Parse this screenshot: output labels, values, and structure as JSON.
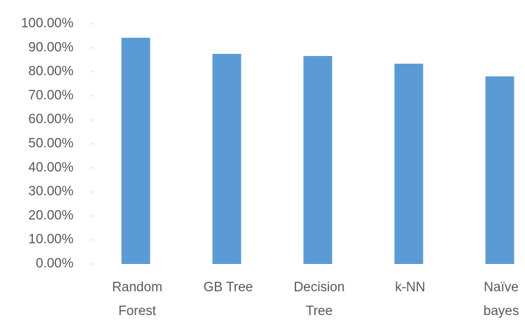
{
  "chart_data": {
    "type": "bar",
    "categories": [
      "Random\nForest",
      "GB Tree",
      "Decision\nTree",
      "k-NN",
      "Naïve\nbayes"
    ],
    "values": [
      94.2,
      87.5,
      86.6,
      83.4,
      78.1
    ],
    "color": "#5b9bd5",
    "ylim": [
      0,
      100
    ],
    "yticks": [
      {
        "value": 0,
        "label": "0.00%"
      },
      {
        "value": 10,
        "label": "10.00%"
      },
      {
        "value": 20,
        "label": "20.00%"
      },
      {
        "value": 30,
        "label": "30.00%"
      },
      {
        "value": 40,
        "label": "40.00%"
      },
      {
        "value": 50,
        "label": "50.00%"
      },
      {
        "value": 60,
        "label": "60.00%"
      },
      {
        "value": 70,
        "label": "70.00%"
      },
      {
        "value": 80,
        "label": "80.00%"
      },
      {
        "value": 90,
        "label": "90.00%"
      },
      {
        "value": 100,
        "label": "100.00%"
      }
    ],
    "grid": false
  }
}
